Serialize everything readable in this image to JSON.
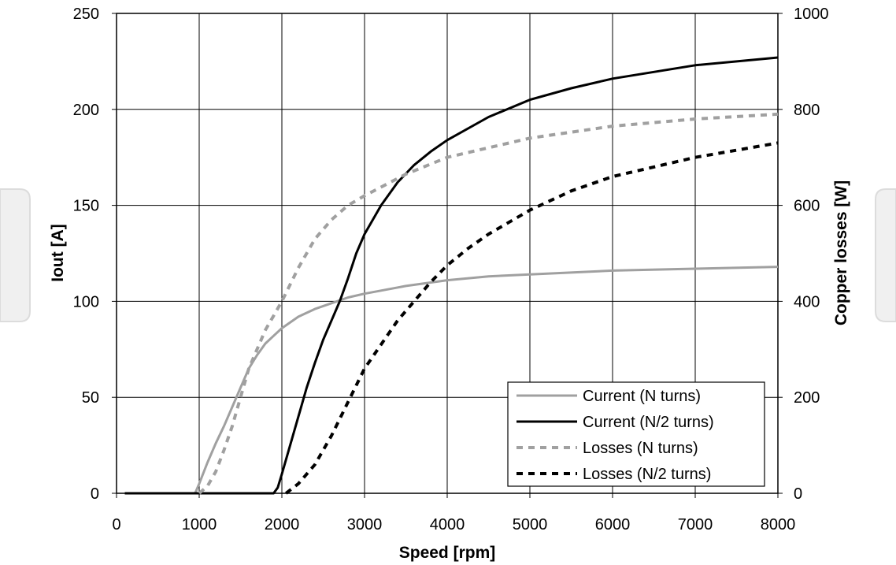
{
  "chart_data": {
    "type": "line",
    "xlabel": "Speed [rpm]",
    "ylabel": "Iout [A]",
    "y2label": "Copper losses [W]",
    "xlim": [
      0,
      8000
    ],
    "ylim": [
      0,
      250
    ],
    "y2lim": [
      0,
      1000
    ],
    "xticks": [
      "0",
      "1000",
      "2000",
      "3000",
      "4000",
      "5000",
      "6000",
      "7000",
      "8000"
    ],
    "yticks": [
      "0",
      "50",
      "100",
      "150",
      "200",
      "250"
    ],
    "y2ticks": [
      "0",
      "200",
      "400",
      "600",
      "800",
      "1000"
    ],
    "grid": true,
    "legend_position": "bottom-right",
    "series": [
      {
        "name": "Current (N turns)",
        "axis": "left",
        "style": "solid",
        "color": "#a0a0a0",
        "x": [
          100,
          950,
          1000,
          1100,
          1200,
          1300,
          1400,
          1500,
          1600,
          1700,
          1800,
          1900,
          2000,
          2200,
          2400,
          2600,
          2800,
          3000,
          3500,
          4000,
          4500,
          5000,
          6000,
          7000,
          8000
        ],
        "y": [
          0,
          0,
          5,
          16,
          26,
          35,
          45,
          55,
          65,
          72,
          78,
          82,
          86,
          92,
          96,
          99,
          102,
          104,
          108,
          111,
          113,
          114,
          116,
          117,
          118
        ]
      },
      {
        "name": "Current (N/2 turns)",
        "axis": "left",
        "style": "solid",
        "color": "#000000",
        "x": [
          100,
          1900,
          1950,
          2000,
          2100,
          2200,
          2300,
          2400,
          2500,
          2600,
          2700,
          2800,
          2900,
          3000,
          3200,
          3400,
          3600,
          3800,
          4000,
          4500,
          5000,
          5500,
          6000,
          7000,
          8000
        ],
        "y": [
          0,
          0,
          3,
          10,
          25,
          40,
          55,
          68,
          80,
          90,
          100,
          112,
          125,
          135,
          150,
          162,
          171,
          178,
          184,
          196,
          205,
          211,
          216,
          223,
          227
        ]
      },
      {
        "name": "Losses (N turns)",
        "axis": "right",
        "style": "dashed",
        "color": "#a0a0a0",
        "x": [
          1000,
          1100,
          1200,
          1300,
          1400,
          1500,
          1600,
          1700,
          1800,
          1900,
          2000,
          2200,
          2400,
          2600,
          2800,
          3000,
          3500,
          4000,
          4500,
          5000,
          6000,
          7000,
          8000
        ],
        "y": [
          0,
          15,
          45,
          90,
          140,
          200,
          260,
          300,
          340,
          370,
          400,
          470,
          530,
          570,
          600,
          620,
          665,
          700,
          720,
          740,
          765,
          780,
          790
        ]
      },
      {
        "name": "Losses (N/2 turns)",
        "axis": "right",
        "style": "dashed",
        "color": "#000000",
        "x": [
          2050,
          2200,
          2400,
          2600,
          2800,
          3000,
          3200,
          3400,
          3600,
          3800,
          4000,
          4250,
          4500,
          5000,
          5500,
          6000,
          6500,
          7000,
          7500,
          8000
        ],
        "y": [
          0,
          20,
          60,
          120,
          190,
          260,
          310,
          360,
          400,
          440,
          475,
          510,
          540,
          590,
          630,
          660,
          680,
          700,
          715,
          730
        ]
      }
    ]
  }
}
